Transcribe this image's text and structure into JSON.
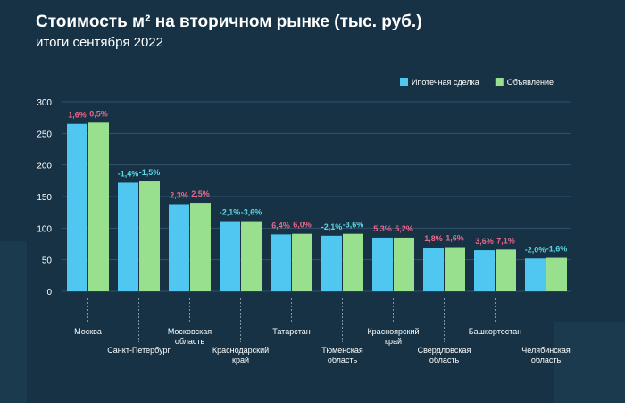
{
  "title": "Стоимость м² на вторичном рынке (тыс. руб.)",
  "subtitle": "итоги сентября 2022",
  "colors": {
    "mortgage": "#4fc7f1",
    "listing": "#98e08e",
    "negative_label": "#5cd6e2",
    "positive_label": "#e8688e",
    "axis_text": "#ffffff",
    "grid": "#31536a"
  },
  "chart_data": {
    "type": "bar",
    "ylim": [
      0,
      300
    ],
    "yticks": [
      0,
      50,
      100,
      150,
      200,
      250,
      300
    ],
    "legend_position": "top-right",
    "categories": [
      "Москва",
      "Санкт-Петербург",
      "Московская область",
      "Краснодарский край",
      "Татарстан",
      "Тюменская область",
      "Красноярский край",
      "Свердловская область",
      "Башкортостан",
      "Челябинская область"
    ],
    "category_lines": [
      [
        "Москва"
      ],
      [
        "Санкт-Петербург"
      ],
      [
        "Московская",
        "область"
      ],
      [
        "Краснодарский",
        "край"
      ],
      [
        "Татарстан"
      ],
      [
        "Тюменская",
        "область"
      ],
      [
        "Красноярский",
        "край"
      ],
      [
        "Свердловская",
        "область"
      ],
      [
        "Башкортостан"
      ],
      [
        "Челябинская",
        "область"
      ]
    ],
    "series": [
      {
        "name": "Ипотечная сделка",
        "values": [
          265,
          172,
          138,
          111,
          90,
          88,
          85,
          69,
          65,
          52
        ],
        "changes": [
          "1,6%",
          "-1,4%",
          "2,3%",
          "-2,1%",
          "6,4%",
          "-2,1%",
          "5,3%",
          "1,8%",
          "3,6%",
          "-2,0%"
        ]
      },
      {
        "name": "Объявление",
        "values": [
          267,
          174,
          140,
          111,
          91,
          91,
          85,
          70,
          66,
          53
        ],
        "changes": [
          "0,5%",
          "-1,5%",
          "2,5%",
          "-3,6%",
          "6,0%",
          "-3,6%",
          "5,2%",
          "1,6%",
          "7,1%",
          "-1,6%"
        ]
      }
    ]
  }
}
